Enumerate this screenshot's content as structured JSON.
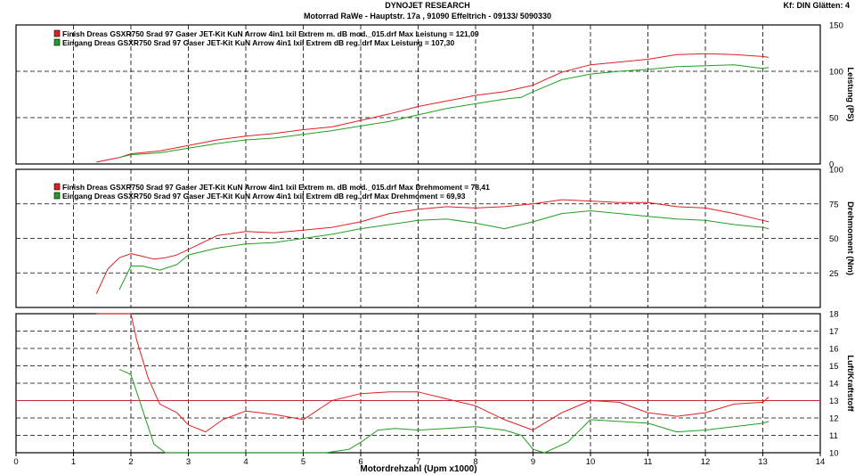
{
  "header": {
    "title": "DYNOJET RESEARCH",
    "subtitle": "Motorrad RaWe  - Hauptstr. 17a , 91090 Effeltrich - 09133/ 5090330",
    "settings": "Kf: DIN  Glätten: 4"
  },
  "chart_data": [
    {
      "type": "line",
      "ylabel": "Leistung (PS)",
      "ylim": [
        0,
        150
      ],
      "yticks": [
        0,
        50,
        100,
        150
      ],
      "xlim": [
        0,
        14
      ],
      "grid": true,
      "legend": [
        {
          "text": "Finish Dreas GSXR750 Srad 97 Gaser JET-Kit KuN Arrow 4in1 Ixil Extrem m. dB mod._015.drf Max Leistung = 121,09",
          "color": "#e02020"
        },
        {
          "text": "Eingang Dreas GSXR750 Srad 97 Gaser JET-Kit KuN Arrow 4in1 Ixil Extrem dB reg..drf Max Leistung = 107,30",
          "color": "#20a020"
        }
      ],
      "series": [
        {
          "color": "#e02020",
          "x": [
            1.4,
            1.8,
            2.0,
            2.5,
            3.0,
            3.5,
            4.0,
            4.5,
            5.0,
            5.5,
            6.0,
            6.5,
            7.0,
            7.5,
            8.0,
            8.5,
            9.0,
            9.5,
            10.0,
            10.5,
            11.0,
            11.5,
            12.0,
            12.5,
            13.0,
            13.1
          ],
          "y": [
            2,
            7,
            11,
            14,
            20,
            26,
            30,
            33,
            37,
            40,
            47,
            54,
            62,
            68,
            74,
            78,
            85,
            99,
            107,
            110,
            113,
            118,
            119,
            118,
            116,
            115
          ]
        },
        {
          "color": "#20a020",
          "x": [
            1.8,
            2.0,
            2.5,
            3.0,
            3.5,
            4.0,
            4.5,
            5.0,
            5.5,
            6.0,
            6.5,
            7.0,
            7.5,
            8.0,
            8.5,
            8.8,
            9.0,
            9.5,
            10.0,
            10.5,
            11.0,
            11.5,
            12.0,
            12.5,
            13.0,
            13.1
          ],
          "y": [
            7,
            10,
            12,
            17,
            22,
            26,
            28,
            32,
            36,
            41,
            46,
            53,
            60,
            65,
            70,
            72,
            78,
            91,
            97,
            100,
            102,
            105,
            106,
            107,
            103,
            104
          ]
        }
      ]
    },
    {
      "type": "line",
      "ylabel": "Drehmoment (Nm)",
      "ylim": [
        0,
        100
      ],
      "yticks": [
        25,
        50,
        75,
        100
      ],
      "xlim": [
        0,
        14
      ],
      "grid": true,
      "legend": [
        {
          "text": "Finish Dreas GSXR750 Srad 97 Gaser JET-Kit KuN Arrow 4in1 Ixil Extrem m. dB mod._015.drf Max Drehmoment = 78,41",
          "color": "#e02020"
        },
        {
          "text": "Eingang Dreas GSXR750 Srad 97 Gaser JET-Kit KuN Arrow 4in1 Ixil Extrem dB reg..drf Max Drehmoment = 69,93",
          "color": "#20a020"
        }
      ],
      "series": [
        {
          "color": "#e02020",
          "x": [
            1.4,
            1.6,
            1.8,
            2.0,
            2.2,
            2.4,
            2.6,
            2.8,
            3.0,
            3.5,
            4.0,
            4.5,
            5.0,
            5.5,
            6.0,
            6.5,
            7.0,
            7.5,
            8.0,
            8.5,
            9.0,
            9.5,
            10.0,
            10.5,
            11.0,
            11.5,
            12.0,
            12.5,
            13.0,
            13.1
          ],
          "y": [
            10,
            28,
            36,
            39,
            37,
            35,
            36,
            38,
            42,
            52,
            55,
            54,
            56,
            58,
            62,
            68,
            71,
            73,
            72,
            73,
            75,
            78,
            77,
            76,
            76,
            73,
            72,
            68,
            63,
            62
          ]
        },
        {
          "color": "#20a020",
          "x": [
            1.8,
            2.0,
            2.2,
            2.5,
            2.8,
            3.0,
            3.5,
            4.0,
            4.5,
            5.0,
            5.5,
            6.0,
            6.5,
            7.0,
            7.5,
            8.0,
            8.5,
            9.0,
            9.5,
            10.0,
            10.5,
            11.0,
            11.5,
            12.0,
            12.5,
            13.0,
            13.1
          ],
          "y": [
            13,
            30,
            30,
            27,
            31,
            38,
            43,
            46,
            47,
            50,
            53,
            57,
            60,
            63,
            64,
            61,
            57,
            62,
            68,
            70,
            68,
            66,
            64,
            63,
            60,
            58,
            57
          ]
        }
      ]
    },
    {
      "type": "line",
      "ylabel": "Luft/Kraftstoff",
      "ylim": [
        10,
        18
      ],
      "yticks": [
        10,
        11,
        12,
        13,
        14,
        15,
        16,
        17,
        18
      ],
      "xlim": [
        0,
        14
      ],
      "grid": true,
      "reference_line": {
        "y": 13,
        "color": "#c03030"
      },
      "series": [
        {
          "color": "#e02020",
          "x": [
            1.4,
            2.0,
            2.1,
            2.3,
            2.5,
            2.8,
            3.0,
            3.3,
            3.6,
            4.0,
            4.5,
            5.0,
            5.5,
            6.0,
            6.5,
            7.0,
            7.5,
            8.0,
            8.5,
            9.0,
            9.5,
            10.0,
            10.5,
            11.0,
            11.5,
            12.0,
            12.5,
            13.0,
            13.1
          ],
          "y": [
            18,
            18,
            16.5,
            14.3,
            12.8,
            12.3,
            11.6,
            11.2,
            11.9,
            12.4,
            12.2,
            11.9,
            13.0,
            13.4,
            13.5,
            13.5,
            13.1,
            12.7,
            11.9,
            11.3,
            12.3,
            13.0,
            12.9,
            12.3,
            12.1,
            12.3,
            12.8,
            12.9,
            13.2
          ]
        },
        {
          "color": "#20a020",
          "x": [
            1.8,
            2.0,
            2.2,
            2.4,
            2.6,
            5.4,
            5.8,
            6.0,
            6.3,
            6.6,
            7.0,
            7.5,
            8.0,
            8.5,
            8.8,
            9.0,
            9.2,
            9.6,
            10.0,
            10.5,
            11.0,
            11.5,
            12.0,
            12.5,
            13.0,
            13.1
          ],
          "y": [
            14.8,
            14.5,
            12.5,
            10.5,
            10,
            10,
            10.2,
            10.6,
            11.3,
            11.4,
            11.3,
            11.4,
            11.5,
            11.3,
            11.0,
            10.2,
            10,
            10.6,
            11.9,
            11.8,
            11.7,
            11.2,
            11.3,
            11.5,
            11.7,
            11.8
          ]
        }
      ]
    }
  ],
  "x_axis": {
    "label": "Motordrehzahl (Upm x1000)",
    "ticks": [
      0,
      1,
      2,
      3,
      4,
      5,
      6,
      7,
      8,
      9,
      10,
      11,
      12,
      13,
      14
    ]
  }
}
